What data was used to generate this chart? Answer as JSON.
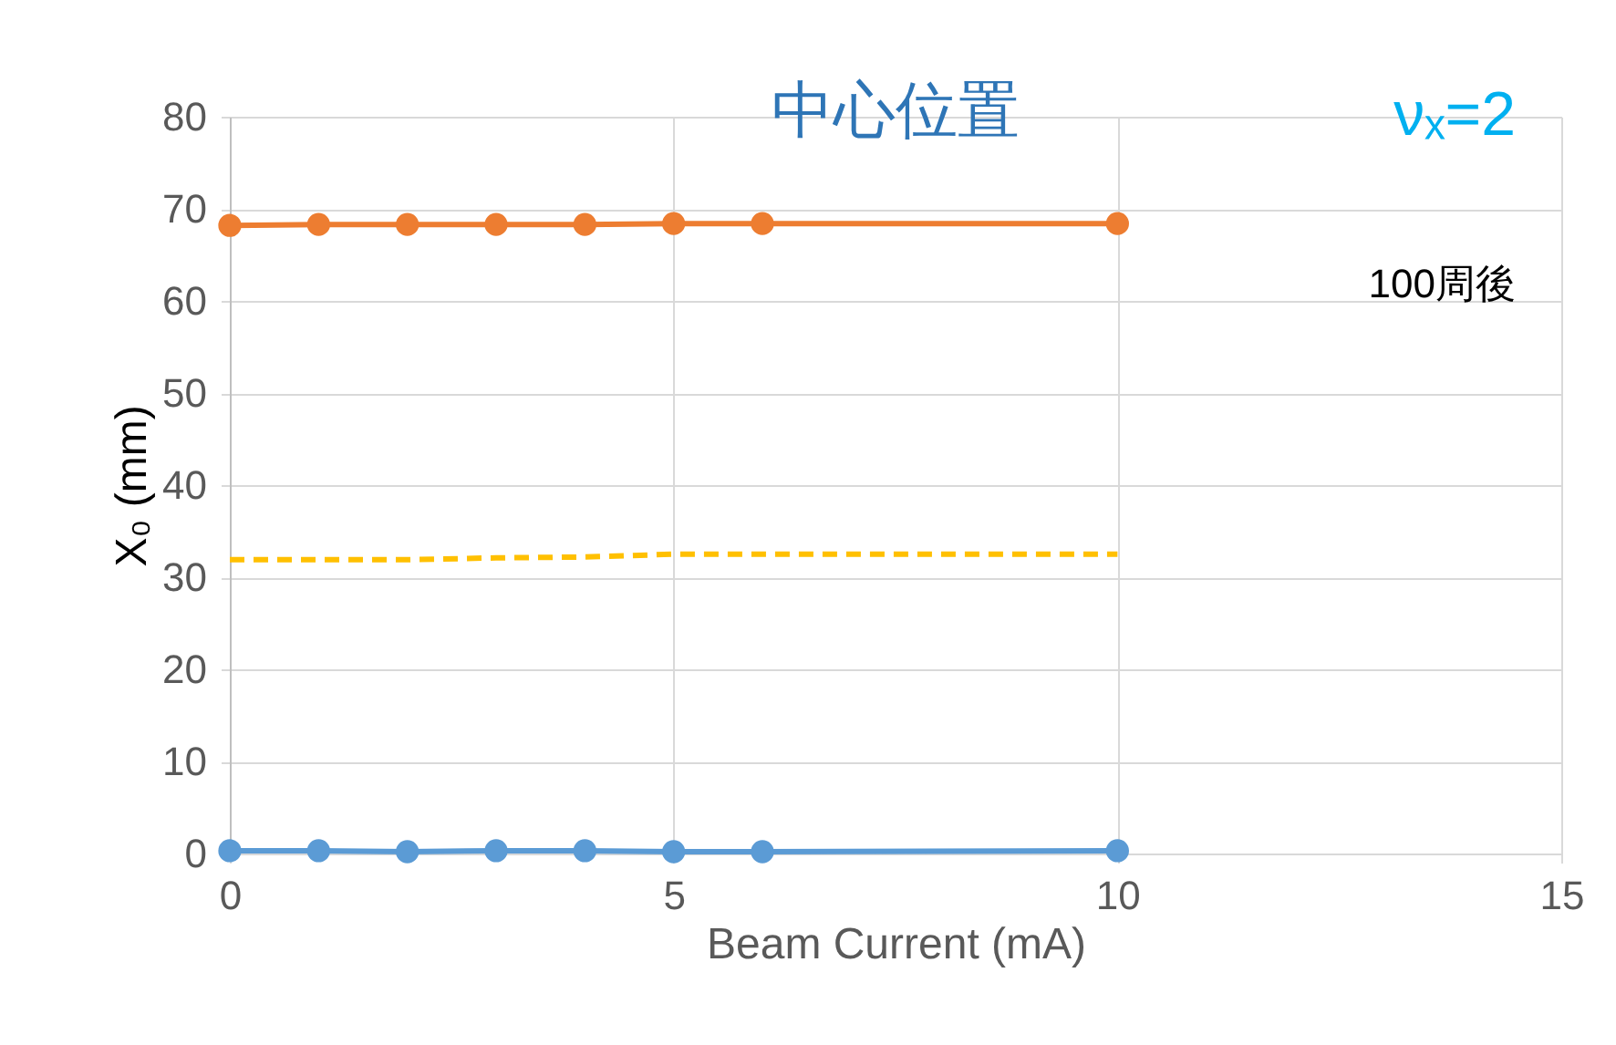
{
  "chart_data": {
    "type": "line",
    "title": "中心位置",
    "xlabel": "Beam Current (mA)",
    "ylabel": "X₀ (mm)",
    "x": [
      0,
      1,
      2,
      3,
      4,
      5,
      6,
      10
    ],
    "series": [
      {
        "color": "#ed7d31",
        "values": [
          68.2,
          68.3,
          68.3,
          68.3,
          68.3,
          68.4,
          68.4,
          68.4
        ],
        "marker": "circle",
        "line_style": "solid"
      },
      {
        "color": "#ffc000",
        "values": [
          31.9,
          31.9,
          31.9,
          32.1,
          32.2,
          32.5,
          32.5,
          32.5
        ],
        "marker": "none",
        "line_style": "dashed"
      },
      {
        "color": "#5b9bd5",
        "values": [
          0.3,
          0.3,
          0.2,
          0.3,
          0.3,
          0.2,
          0.2,
          0.3
        ],
        "marker": "circle",
        "line_style": "solid"
      }
    ],
    "annotations": [
      "νₓ=2",
      "100周後"
    ],
    "xlim": [
      0,
      15
    ],
    "xticks": [
      0,
      5,
      10,
      15
    ],
    "ylim": [
      0,
      80
    ],
    "yticks": [
      0,
      10,
      20,
      30,
      40,
      50,
      60,
      70,
      80
    ],
    "grid": true
  }
}
